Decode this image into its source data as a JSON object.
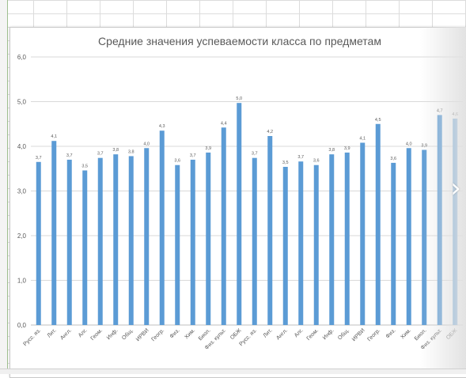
{
  "colors": {
    "bar": "#5b9bd5",
    "gridline": "#d9d9d9",
    "axis": "#bfbfbf",
    "text": "#595959"
  },
  "nav": {
    "next_icon": "chevron-right-icon",
    "next_glyph": "›"
  },
  "chart_data": {
    "type": "bar",
    "title": "Средние значения успеваемости класса по предметам",
    "xlabel": "",
    "ylabel": "",
    "ylim": [
      0,
      6
    ],
    "yticks": [
      "0,0",
      "1,0",
      "2,0",
      "3,0",
      "4,0",
      "5,0",
      "6,0"
    ],
    "grid": true,
    "legend": "none",
    "categories": [
      "Русс. яз.",
      "Лит.",
      "Англ.",
      "Алг.",
      "Геом.",
      "Инф.",
      "Общ.",
      "ИРВИ",
      "Геогр.",
      "Физ.",
      "Хим.",
      "Биол.",
      "Физ. культ.",
      "ОБЖ",
      "Русс. яз.",
      "Лит.",
      "Англ.",
      "Алг.",
      "Геом.",
      "Инф.",
      "Общ.",
      "ИРВИ",
      "Геогр.",
      "Физ.",
      "Хим.",
      "Биол.",
      "Физ. культ.",
      "ОБЖ"
    ],
    "values": [
      3.65,
      4.12,
      3.7,
      3.46,
      3.74,
      3.82,
      3.78,
      3.96,
      4.35,
      3.58,
      3.7,
      3.86,
      4.42,
      4.97,
      3.74,
      4.23,
      3.54,
      3.66,
      3.58,
      3.82,
      3.86,
      4.08,
      4.5,
      3.63,
      3.96,
      3.92,
      4.7,
      4.62
    ],
    "data_labels": [
      "3,7",
      "4,1",
      "3,7",
      "3,5",
      "3,7",
      "3,8",
      "3,8",
      "4,0",
      "4,3",
      "3,6",
      "3,7",
      "3,9",
      "4,4",
      "5,0",
      "3,7",
      "4,2",
      "3,5",
      "3,7",
      "3,6",
      "3,8",
      "3,9",
      "4,1",
      "4,5",
      "3,6",
      "4,0",
      "3,9",
      "4,7",
      "4,6"
    ]
  }
}
